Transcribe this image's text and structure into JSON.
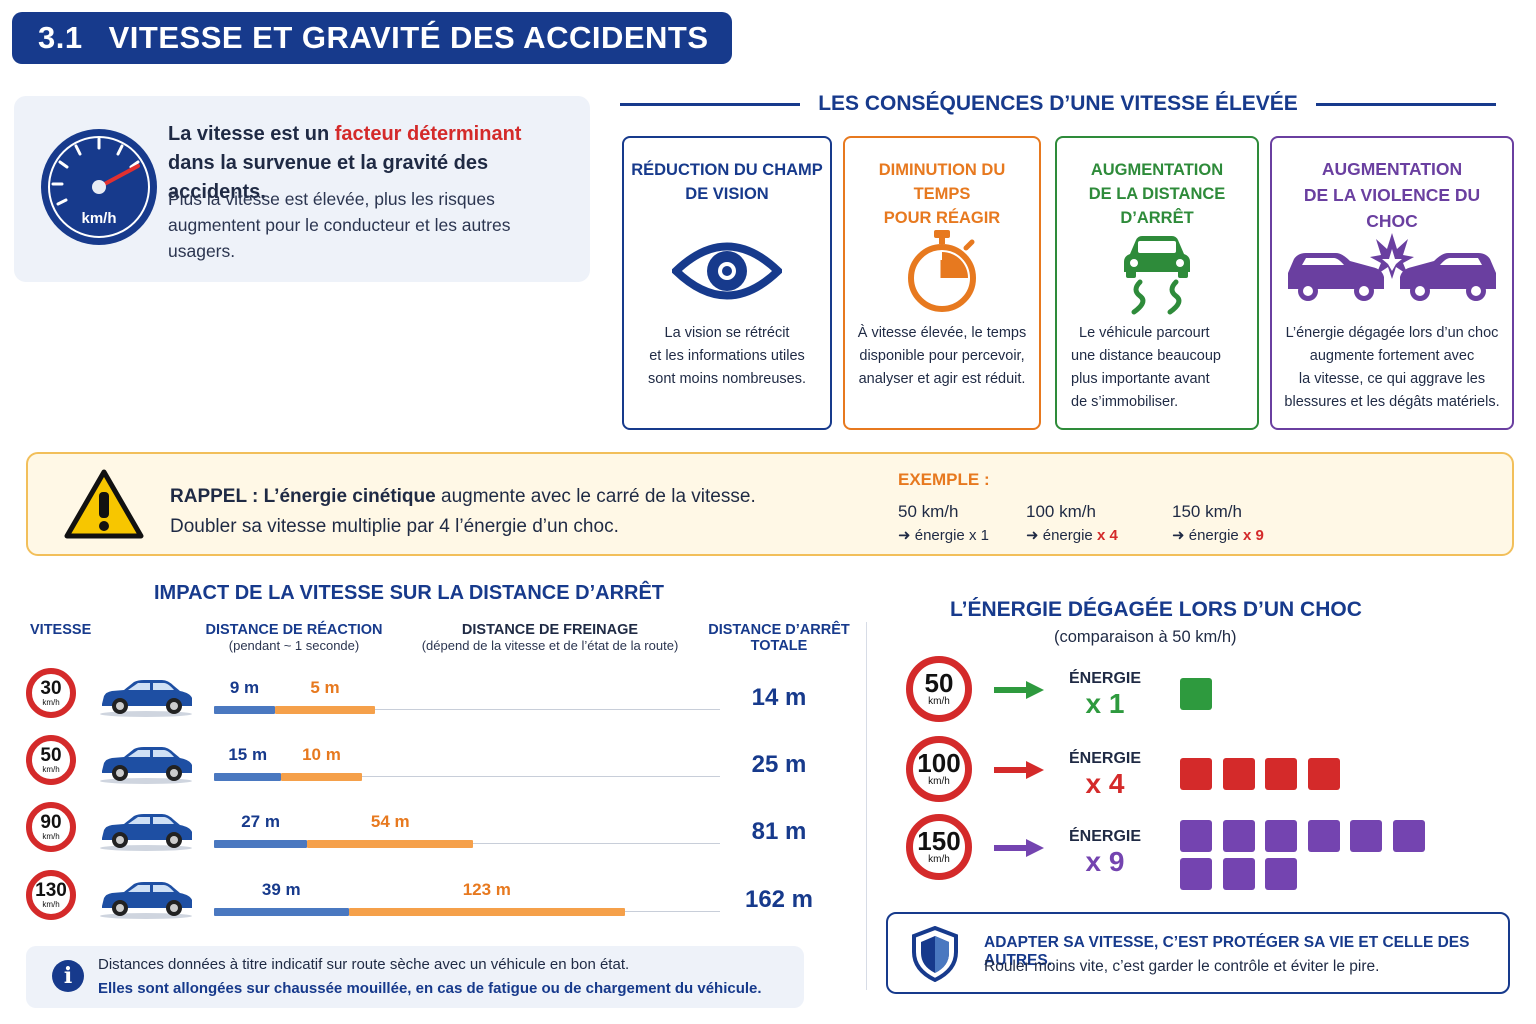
{
  "header": {
    "number": "3.1",
    "title": "VITESSE ET GRAVITÉ DES ACCIDENTS"
  },
  "intro": {
    "gauge_unit": "km/h",
    "lead_part1": "La vitesse est un ",
    "lead_highlight": "facteur déterminant",
    "lead_part2": "dans la survenue et la gravité des accidents.",
    "body": "Plus la vitesse est élevée, plus les risques augmentent pour le conducteur et les autres usagers."
  },
  "consequences": {
    "title": "LES CONSÉQUENCES D’UNE VITESSE ÉLEVÉE",
    "cards": [
      {
        "title_l1": "RÉDUCTION DU CHAMP",
        "title_l2": "DE VISION",
        "icon": "eye-icon",
        "color": "#173a8c",
        "desc": [
          "La vision se rétrécit",
          "et les informations utiles",
          "sont moins nombreuses."
        ]
      },
      {
        "title_l1": "DIMINUTION DU TEMPS",
        "title_l2": "POUR RÉAGIR",
        "icon": "stopwatch-icon",
        "color": "#e7791f",
        "desc": [
          "À vitesse élevée, le temps",
          "disponible pour percevoir,",
          "analyser et agir est réduit."
        ]
      },
      {
        "title_l1": "AUGMENTATION",
        "title_l2": "DE LA DISTANCE D’ARRÊT",
        "icon": "skidding-car-icon",
        "color": "#2e8b3a",
        "desc": [
          "Le véhicule parcourt",
          "une distance beaucoup",
          "plus importante avant",
          "de s’immobiliser."
        ]
      },
      {
        "title_l1": "AUGMENTATION",
        "title_l2": "DE LA VIOLENCE DU CHOC",
        "icon": "car-crash-icon",
        "color": "#6a3fa0",
        "desc": [
          "L’énergie dégagée lors d’un choc",
          "augmente fortement avec",
          "la vitesse, ce qui aggrave les",
          "blessures et les dégâts matériels."
        ]
      }
    ]
  },
  "reminder": {
    "icon": "warning-icon",
    "l1_bold": "RAPPEL : L’énergie cinétique",
    "l1_rest": " augmente avec le carré de la vitesse.",
    "l2": "Doubler sa vitesse multiplie par 4 l’énergie d’un choc.",
    "example_title": "EXEMPLE :",
    "examples": [
      {
        "speed": "50 km/h",
        "energy_prefix": "➜ énergie x 1",
        "mult": ""
      },
      {
        "speed": "100 km/h",
        "energy_prefix": "➜ énergie ",
        "mult": "x 4"
      },
      {
        "speed": "150 km/h",
        "energy_prefix": "➜ énergie ",
        "mult": "x 9"
      }
    ]
  },
  "impact": {
    "title": "IMPACT DE LA VITESSE SUR LA DISTANCE D’ARRÊT",
    "col_speed": "VITESSE",
    "col_reaction": "DISTANCE DE RÉACTION",
    "col_reaction_sub": "(pendant ~ 1 seconde)",
    "col_braking": "DISTANCE DE FREINAGE",
    "col_braking_sub": "(dépend de la vitesse et de l’état de la route)",
    "col_total_l1": "DISTANCE D’ARRÊT",
    "col_total_l2": "TOTALE",
    "unit": "km/h",
    "rows": [
      {
        "speed": "30",
        "reaction": 9,
        "braking": 5,
        "reaction_label": "9 m",
        "braking_label": "5 m",
        "total": "14 m"
      },
      {
        "speed": "50",
        "reaction": 15,
        "braking": 10,
        "reaction_label": "15 m",
        "braking_label": "10 m",
        "total": "25 m"
      },
      {
        "speed": "90",
        "reaction": 27,
        "braking": 54,
        "reaction_label": "27 m",
        "braking_label": "54 m",
        "total": "81 m"
      },
      {
        "speed": "130",
        "reaction": 39,
        "braking": 123,
        "reaction_label": "39 m",
        "braking_label": "123 m",
        "total": "162 m"
      }
    ],
    "colors": {
      "reaction": "#4a78c0",
      "braking": "#f5a04a",
      "reaction_text": "#173a8c",
      "braking_text": "#e7791f"
    }
  },
  "info": {
    "l1": "Distances données à titre indicatif sur route sèche avec un véhicule en bon état.",
    "l2": "Elles sont allongées sur chaussée mouillée, en cas de fatigue ou de chargement du véhicule."
  },
  "energy": {
    "title": "L’ÉNERGIE DÉGAGÉE LORS D’UN CHOC",
    "subtitle": "(comparaison à 50 km/h)",
    "label": "ÉNERGIE",
    "unit": "km/h",
    "rows": [
      {
        "speed": "50",
        "mult": "x 1",
        "count": 1,
        "color": "#2e9a3e"
      },
      {
        "speed": "100",
        "mult": "x 4",
        "count": 4,
        "color": "#d42a2a"
      },
      {
        "speed": "150",
        "mult": "x 9",
        "count": 9,
        "color": "#7444b0"
      }
    ]
  },
  "advice": {
    "icon": "shield-icon",
    "l1": "ADAPTER SA VITESSE, C’EST PROTÉGER SA VIE ET CELLE DES AUTRES.",
    "l2": "Rouler moins vite, c’est garder le contrôle et éviter le pire."
  }
}
